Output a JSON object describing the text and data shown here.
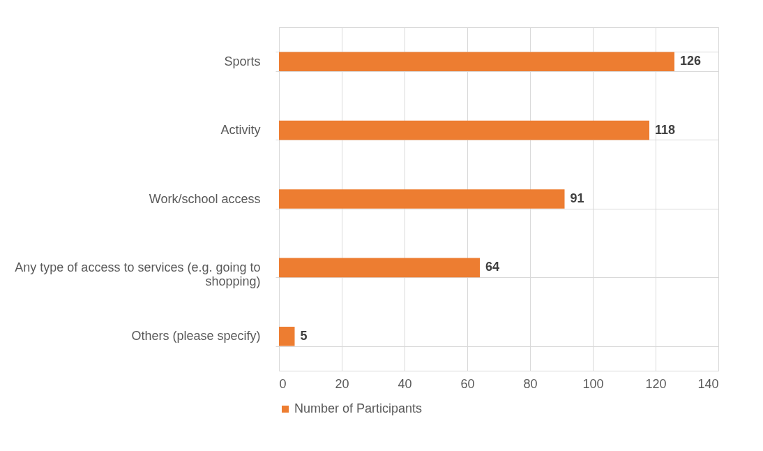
{
  "chart_data": {
    "type": "bar",
    "orientation": "horizontal",
    "categories": [
      "Sports",
      "Activity",
      "Work/school access",
      "Any type of access to services (e.g. going to shopping)",
      "Others (please specify)"
    ],
    "series": [
      {
        "name": "Number of Participants",
        "color": "#ed7d31",
        "values": [
          126,
          118,
          91,
          64,
          5
        ]
      }
    ],
    "xlim": [
      0,
      140
    ],
    "xticks": [
      0,
      20,
      40,
      60,
      80,
      100,
      120,
      140
    ],
    "grid": true,
    "legend": "bottom",
    "data_labels": true
  }
}
